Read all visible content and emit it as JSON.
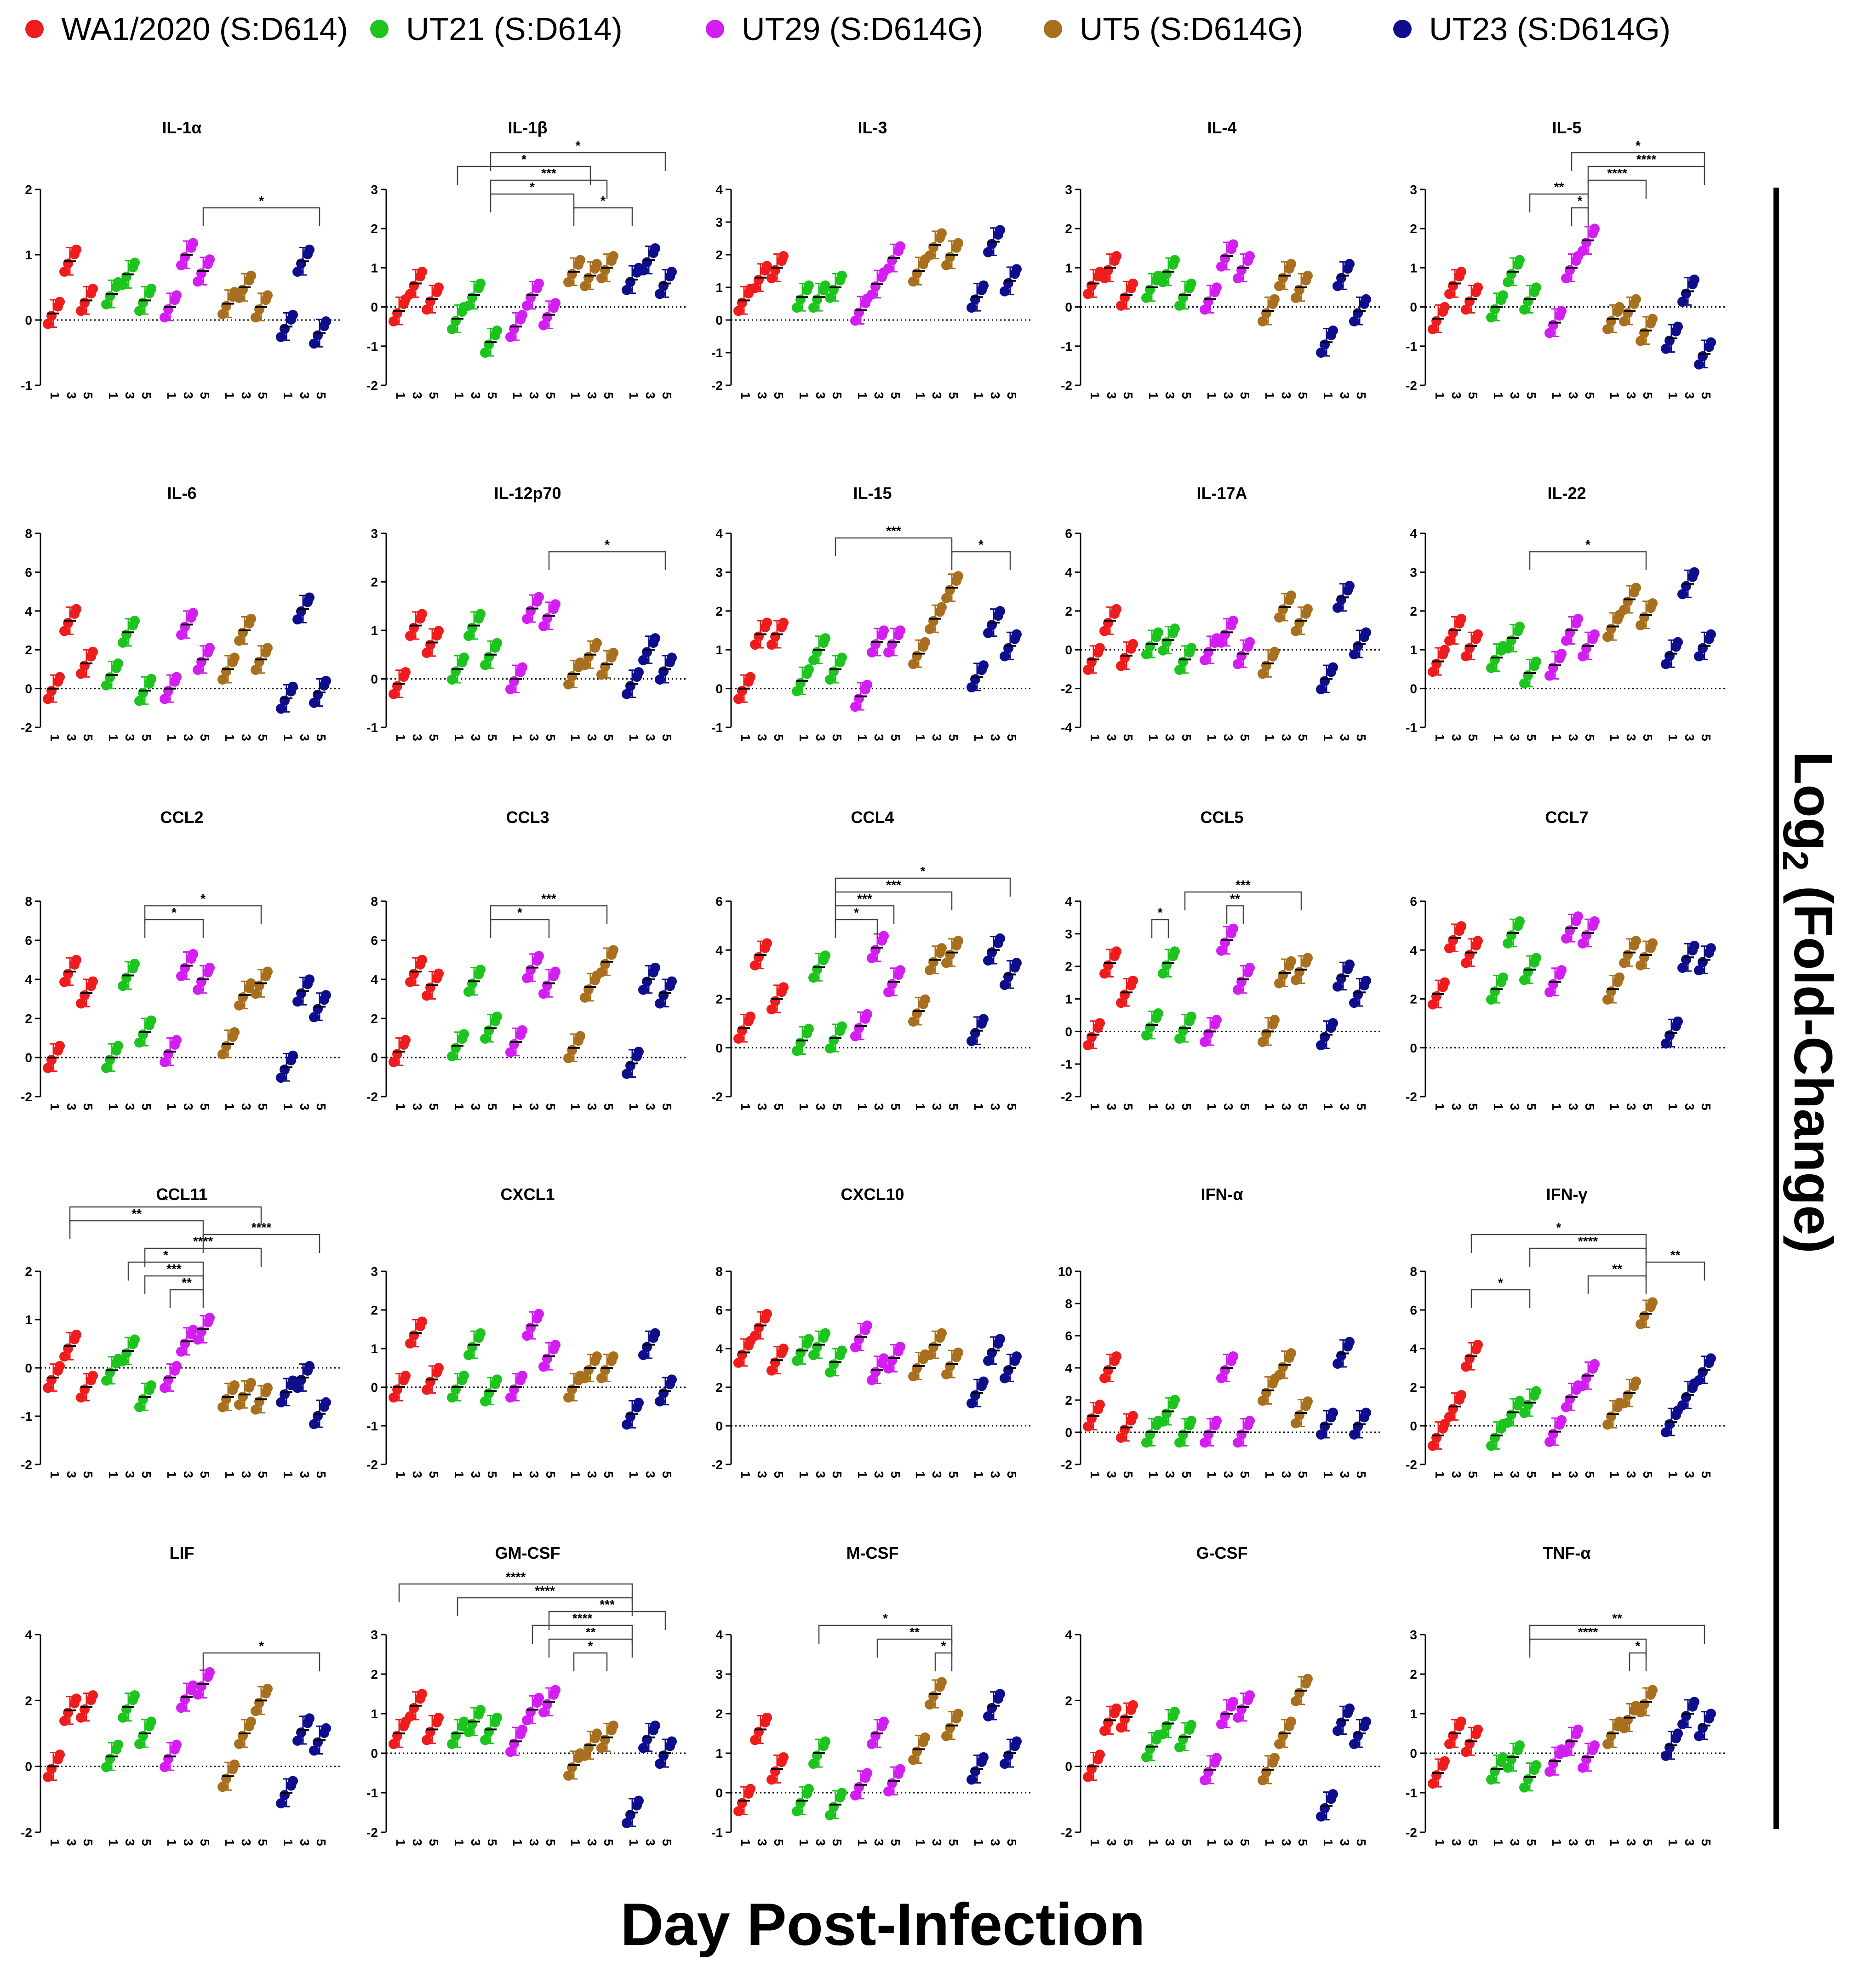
{
  "chart_data": {
    "type": "scatter",
    "legend": [
      {
        "name": "WA1/2020 (S:D614)",
        "color": "#ee1c1c"
      },
      {
        "name": "UT21 (S:D614)",
        "color": "#1ec41e"
      },
      {
        "name": "UT29 (S:D614G)",
        "color": "#d21ef0"
      },
      {
        "name": "UT5 (S:D614G)",
        "color": "#a8701e"
      },
      {
        "name": "UT23 (S:D614G)",
        "color": "#0e0e8c"
      }
    ],
    "xlabel": "Day Post-Infection",
    "ylabel_main": "Log",
    "ylabel_sub": "2",
    "ylabel_rest": " (Fold-Change)",
    "days": [
      "1",
      "3",
      "5"
    ],
    "panels": [
      {
        "title": "IL-1α",
        "ylim": [
          -1,
          2
        ],
        "yticks": [
          "-1",
          "0",
          "1",
          "2"
        ],
        "means": [
          0.1,
          0.9,
          0.3,
          0.4,
          0.7,
          0.3,
          0.2,
          1.0,
          0.75,
          0.25,
          0.5,
          0.2,
          -0.1,
          0.9,
          -0.2
        ],
        "sig": [
          {
            "a": 8,
            "b": 14,
            "l": "*"
          }
        ]
      },
      {
        "title": "IL-1β",
        "ylim": [
          -2,
          3
        ],
        "yticks": [
          "-2",
          "-1",
          "0",
          "1",
          "2",
          "3"
        ],
        "means": [
          -0.1,
          0.6,
          0.2,
          -0.3,
          0.3,
          -0.9,
          -0.5,
          0.3,
          -0.2,
          0.9,
          0.8,
          1.0,
          0.7,
          1.2,
          0.6
        ],
        "sig": [
          {
            "a": 9,
            "b": 12,
            "l": "*"
          },
          {
            "a": 5,
            "b": 9,
            "l": "*"
          },
          {
            "a": 3,
            "b": 10,
            "l": "*"
          },
          {
            "a": 5,
            "b": 11,
            "l": "***"
          },
          {
            "a": 5,
            "b": 14,
            "l": "*"
          }
        ]
      },
      {
        "title": "IL-3",
        "ylim": [
          -2,
          4
        ],
        "yticks": [
          "-2",
          "-1",
          "0",
          "1",
          "2",
          "3",
          "4"
        ],
        "means": [
          0.6,
          1.3,
          1.6,
          0.7,
          0.7,
          1.0,
          0.3,
          1.1,
          1.9,
          1.5,
          2.3,
          2.0,
          0.7,
          2.4,
          1.2
        ],
        "sig": []
      },
      {
        "title": "IL-4",
        "ylim": [
          -2,
          3
        ],
        "yticks": [
          "-2",
          "-1",
          "0",
          "1",
          "2",
          "3"
        ],
        "means": [
          0.6,
          1.0,
          0.3,
          0.5,
          0.9,
          0.3,
          0.2,
          1.3,
          1.0,
          -0.1,
          0.8,
          0.5,
          -0.9,
          0.8,
          -0.1
        ],
        "sig": []
      },
      {
        "title": "IL-5",
        "ylim": [
          -2,
          3
        ],
        "yticks": [
          "-2",
          "-1",
          "0",
          "1",
          "2",
          "3"
        ],
        "means": [
          -0.3,
          0.6,
          0.2,
          0.0,
          0.9,
          0.2,
          -0.4,
          1.0,
          1.7,
          -0.3,
          -0.1,
          -0.6,
          -0.8,
          0.4,
          -1.2
        ],
        "sig": [
          {
            "a": 7,
            "b": 8,
            "l": "*"
          },
          {
            "a": 5,
            "b": 8,
            "l": "**"
          },
          {
            "a": 8,
            "b": 11,
            "l": "****"
          },
          {
            "a": 8,
            "b": 14,
            "l": "****"
          },
          {
            "a": 7,
            "b": 14,
            "l": "*"
          }
        ]
      },
      {
        "title": "IL-6",
        "ylim": [
          -2,
          8
        ],
        "yticks": [
          "-2",
          "0",
          "2",
          "4",
          "6",
          "8"
        ],
        "means": [
          0.0,
          3.5,
          1.3,
          0.7,
          2.9,
          -0.1,
          0.0,
          3.3,
          1.5,
          1.0,
          3.0,
          1.5,
          -0.5,
          4.1,
          -0.2
        ],
        "sig": []
      },
      {
        "title": "IL-12p70",
        "ylim": [
          -1,
          3
        ],
        "yticks": [
          "-1",
          "0",
          "1",
          "2",
          "3"
        ],
        "means": [
          -0.1,
          1.1,
          0.75,
          0.2,
          1.1,
          0.5,
          0.0,
          1.45,
          1.3,
          0.1,
          0.5,
          0.3,
          -0.1,
          0.6,
          0.2
        ],
        "sig": [
          {
            "a": 8,
            "b": 14,
            "l": "*"
          }
        ]
      },
      {
        "title": "IL-15",
        "ylim": [
          -1,
          4
        ],
        "yticks": [
          "-1",
          "0",
          "1",
          "2",
          "3",
          "4"
        ],
        "means": [
          0.0,
          1.4,
          1.4,
          0.2,
          1.0,
          0.5,
          -0.2,
          1.2,
          1.2,
          0.9,
          1.8,
          2.6,
          0.3,
          1.7,
          1.1
        ],
        "sig": [
          {
            "a": 5,
            "b": 11,
            "l": "***"
          },
          {
            "a": 11,
            "b": 14,
            "l": "*"
          }
        ]
      },
      {
        "title": "IL-17A",
        "ylim": [
          -4,
          6
        ],
        "yticks": [
          "-4",
          "-2",
          "0",
          "2",
          "4",
          "6"
        ],
        "means": [
          -0.5,
          1.5,
          -0.3,
          0.3,
          0.5,
          -0.5,
          0.0,
          0.9,
          -0.2,
          -0.7,
          2.2,
          1.5,
          -1.5,
          2.7,
          0.3
        ],
        "sig": []
      },
      {
        "title": "IL-22",
        "ylim": [
          -1,
          4
        ],
        "yticks": [
          "-1",
          "0",
          "1",
          "2",
          "3",
          "4"
        ],
        "means": [
          0.7,
          1.5,
          1.1,
          0.8,
          1.3,
          0.4,
          0.6,
          1.5,
          1.1,
          1.6,
          2.3,
          1.9,
          0.9,
          2.7,
          1.1
        ],
        "sig": [
          {
            "a": 5,
            "b": 11,
            "l": "*"
          }
        ]
      },
      {
        "title": "CCL2",
        "ylim": [
          -2,
          8
        ],
        "yticks": [
          "-2",
          "0",
          "2",
          "4",
          "6",
          "8"
        ],
        "means": [
          0.0,
          4.4,
          3.3,
          0.0,
          4.2,
          1.3,
          0.3,
          4.7,
          4.0,
          0.7,
          3.2,
          3.8,
          -0.5,
          3.4,
          2.6
        ],
        "sig": [
          {
            "a": 5,
            "b": 8,
            "l": "*"
          },
          {
            "a": 5,
            "b": 11,
            "l": "*"
          }
        ]
      },
      {
        "title": "CCL3",
        "ylim": [
          -2,
          8
        ],
        "yticks": [
          "-2",
          "0",
          "2",
          "4",
          "6",
          "8"
        ],
        "means": [
          0.3,
          4.4,
          3.7,
          0.6,
          3.9,
          1.5,
          0.8,
          4.6,
          3.8,
          0.5,
          3.6,
          4.9,
          -0.3,
          4.0,
          3.3
        ],
        "sig": [
          {
            "a": 5,
            "b": 8,
            "l": "*"
          },
          {
            "a": 5,
            "b": 11,
            "l": "***"
          }
        ]
      },
      {
        "title": "CCL4",
        "ylim": [
          -2,
          6
        ],
        "yticks": [
          "-2",
          "0",
          "2",
          "4",
          "6"
        ],
        "means": [
          0.8,
          3.8,
          2.0,
          0.3,
          3.3,
          0.4,
          0.9,
          4.1,
          2.7,
          1.5,
          3.6,
          3.9,
          0.7,
          4.0,
          3.0
        ],
        "sig": [
          {
            "a": 5,
            "b": 7,
            "l": "*"
          },
          {
            "a": 5,
            "b": 8,
            "l": "***"
          },
          {
            "a": 5,
            "b": 11,
            "l": "***"
          },
          {
            "a": 5,
            "b": 14,
            "l": "*"
          }
        ]
      },
      {
        "title": "CCL5",
        "ylim": [
          -2,
          4
        ],
        "yticks": [
          "-2",
          "-1",
          "0",
          "1",
          "2",
          "3",
          "4"
        ],
        "means": [
          -0.1,
          2.1,
          1.2,
          0.2,
          2.1,
          0.1,
          -0.0,
          2.8,
          1.6,
          0.0,
          1.8,
          1.9,
          -0.1,
          1.7,
          1.2
        ],
        "sig": [
          {
            "a": 3,
            "b": 4,
            "l": "*"
          },
          {
            "a": 7,
            "b": 8,
            "l": "**"
          },
          {
            "a": 5,
            "b": 11,
            "l": "***"
          }
        ]
      },
      {
        "title": "CCL7",
        "ylim": [
          -2,
          6
        ],
        "yticks": [
          "-2",
          "0",
          "2",
          "4",
          "6"
        ],
        "means": [
          2.2,
          4.5,
          3.9,
          2.4,
          4.7,
          3.2,
          2.7,
          4.9,
          4.7,
          2.4,
          3.9,
          3.8,
          0.6,
          3.7,
          3.6
        ],
        "sig": []
      },
      {
        "title": "CCL11",
        "ylim": [
          -2,
          2
        ],
        "yticks": [
          "-2",
          "-1",
          "0",
          "1",
          "2"
        ],
        "means": [
          -0.2,
          0.45,
          -0.4,
          -0.05,
          0.35,
          -0.6,
          -0.2,
          0.55,
          0.8,
          -0.6,
          -0.55,
          -0.65,
          -0.5,
          -0.2,
          -0.95
        ],
        "sig": [
          {
            "a": 6,
            "b": 8,
            "l": "**"
          },
          {
            "a": 5,
            "b": 8,
            "l": "***"
          },
          {
            "a": 5,
            "b": 11,
            "l": "****"
          },
          {
            "a": 4,
            "b": 8,
            "l": "*"
          },
          {
            "a": 8,
            "b": 14,
            "l": "****"
          },
          {
            "a": 1,
            "b": 8,
            "l": "**"
          },
          {
            "a": 1,
            "b": 11,
            "l": "*"
          }
        ]
      },
      {
        "title": "CXCL1",
        "ylim": [
          -2,
          3
        ],
        "yticks": [
          "-2",
          "-1",
          "0",
          "1",
          "2",
          "3"
        ],
        "means": [
          0.0,
          1.4,
          0.2,
          0.0,
          1.1,
          -0.1,
          0.0,
          1.6,
          0.8,
          0.0,
          0.5,
          0.5,
          -0.7,
          1.1,
          -0.1
        ],
        "sig": []
      },
      {
        "title": "CXCL10",
        "ylim": [
          -2,
          8
        ],
        "yticks": [
          "-2",
          "0",
          "2",
          "4",
          "6",
          "8"
        ],
        "means": [
          3.8,
          5.2,
          3.4,
          3.9,
          4.2,
          3.3,
          4.6,
          2.9,
          3.5,
          3.1,
          4.2,
          3.2,
          1.7,
          3.9,
          3.0
        ],
        "sig": []
      },
      {
        "title": "IFN-α",
        "ylim": [
          -2,
          10
        ],
        "yticks": [
          "-2",
          "0",
          "2",
          "4",
          "6",
          "8",
          "10"
        ],
        "means": [
          1.0,
          4.0,
          0.3,
          0.0,
          1.3,
          0.0,
          0.0,
          4.0,
          0.0,
          2.6,
          4.2,
          1.2,
          0.5,
          4.9,
          0.5
        ],
        "sig": []
      },
      {
        "title": "IFN-γ",
        "ylim": [
          -2,
          8
        ],
        "yticks": [
          "-2",
          "0",
          "2",
          "4",
          "6",
          "8"
        ],
        "means": [
          -0.5,
          1.0,
          3.6,
          -0.5,
          0.7,
          1.2,
          -0.3,
          1.5,
          2.6,
          0.6,
          1.7,
          5.8,
          0.2,
          1.6,
          2.9
        ],
        "sig": [
          {
            "a": 2,
            "b": 5,
            "l": "*"
          },
          {
            "a": 8,
            "b": 11,
            "l": "**"
          },
          {
            "a": 5,
            "b": 11,
            "l": "****"
          },
          {
            "a": 11,
            "b": 14,
            "l": "**"
          },
          {
            "a": 2,
            "b": 11,
            "l": "*"
          }
        ]
      },
      {
        "title": "LIF",
        "ylim": [
          -2,
          4
        ],
        "yticks": [
          "-2",
          "0",
          "2",
          "4"
        ],
        "means": [
          0.0,
          1.7,
          1.8,
          0.3,
          1.8,
          1.0,
          0.3,
          2.1,
          2.5,
          -0.3,
          1.0,
          2.0,
          -0.8,
          1.1,
          0.8
        ],
        "sig": [
          {
            "a": 8,
            "b": 14,
            "l": "*"
          }
        ]
      },
      {
        "title": "GM-CSF",
        "ylim": [
          -2,
          3
        ],
        "yticks": [
          "-2",
          "-1",
          "0",
          "1",
          "2",
          "3"
        ],
        "means": [
          0.5,
          1.2,
          0.6,
          0.5,
          0.8,
          0.6,
          0.3,
          1.1,
          1.3,
          -0.3,
          0.2,
          0.4,
          -1.5,
          0.4,
          0.0
        ],
        "sig": [
          {
            "a": 9,
            "b": 11,
            "l": "*"
          },
          {
            "a": 8,
            "b": 12,
            "l": "**"
          },
          {
            "a": 8,
            "b": 14,
            "l": "***"
          },
          {
            "a": 7,
            "b": 12,
            "l": "****"
          },
          {
            "a": 3,
            "b": 12,
            "l": "****"
          },
          {
            "a": 0,
            "b": 12,
            "l": "****"
          }
        ]
      },
      {
        "title": "M-CSF",
        "ylim": [
          -1,
          4
        ],
        "yticks": [
          "-1",
          "0",
          "1",
          "2",
          "3",
          "4"
        ],
        "means": [
          -0.2,
          1.6,
          0.6,
          -0.2,
          1.0,
          -0.3,
          0.2,
          1.5,
          0.3,
          1.1,
          2.5,
          1.7,
          0.6,
          2.2,
          1.0
        ],
        "sig": [
          {
            "a": 10,
            "b": 11,
            "l": "*"
          },
          {
            "a": 4,
            "b": 11,
            "l": "*"
          },
          {
            "a": 7,
            "b": 11,
            "l": "**"
          }
        ]
      },
      {
        "title": "G-CSF",
        "ylim": [
          -2,
          4
        ],
        "yticks": [
          "-2",
          "0",
          "2",
          "4"
        ],
        "means": [
          0.0,
          1.4,
          1.5,
          0.6,
          1.3,
          0.9,
          -0.1,
          1.6,
          1.8,
          -0.1,
          1.0,
          2.3,
          -1.2,
          1.4,
          1.0
        ],
        "sig": []
      },
      {
        "title": "TNF-α",
        "ylim": [
          -2,
          3
        ],
        "yticks": [
          "-2",
          "-1",
          "0",
          "1",
          "2",
          "3"
        ],
        "means": [
          -0.5,
          0.5,
          0.3,
          -0.4,
          -0.1,
          -0.6,
          -0.2,
          0.3,
          -0.1,
          0.5,
          0.9,
          1.3,
          0.2,
          1.0,
          0.7
        ],
        "sig": [
          {
            "a": 10,
            "b": 11,
            "l": "*"
          },
          {
            "a": 5,
            "b": 11,
            "l": "****"
          },
          {
            "a": 5,
            "b": 14,
            "l": "**"
          }
        ]
      }
    ]
  }
}
